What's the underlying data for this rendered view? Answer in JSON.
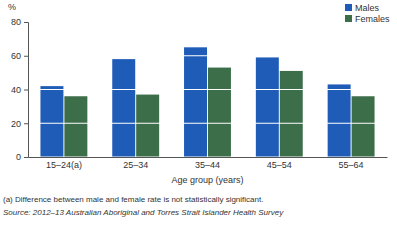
{
  "chart_data": {
    "type": "bar",
    "ylabel": "%",
    "xlabel": "Age group (years)",
    "categories": [
      "15–24(a)",
      "25–34",
      "35–44",
      "45–54",
      "55–64"
    ],
    "series": [
      {
        "name": "Males",
        "color": "#1f5cb8",
        "values": [
          42,
          58,
          65,
          59,
          43
        ]
      },
      {
        "name": "Females",
        "color": "#3d6e4a",
        "values": [
          36,
          37,
          53,
          51,
          36
        ]
      }
    ],
    "ylim": [
      0,
      80
    ],
    "yticks": [
      0,
      20,
      40,
      60,
      80
    ],
    "grid": true,
    "legend": "top-right",
    "annotations": [
      "(a) Difference between male and female rate is not statistically significant.",
      "Source: 2012–13 Australian Aboriginal and Torres Strait Islander Health Survey"
    ]
  }
}
